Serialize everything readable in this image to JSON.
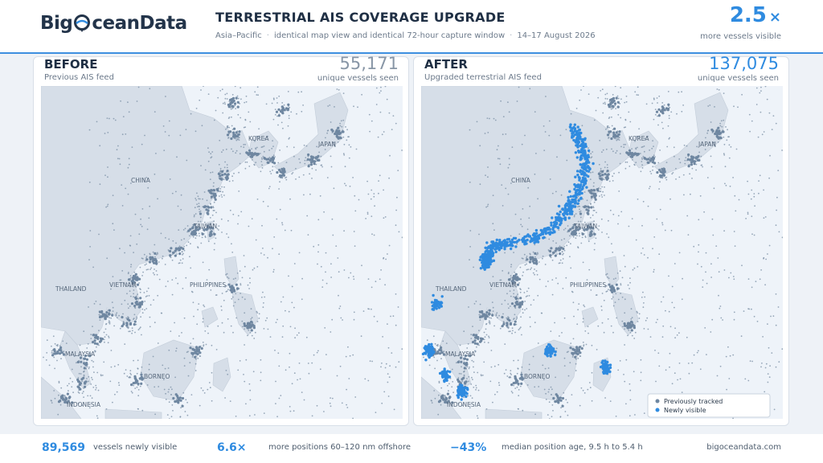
{
  "header": {
    "logo": {
      "left": "Big",
      "right": "ceanData"
    },
    "title": "TERRESTRIAL AIS COVERAGE UPGRADE",
    "subtitle": [
      "Asia–Pacific",
      "identical map view and identical 72-hour capture window",
      "14–17 August 2026"
    ],
    "headline": {
      "value": "2.5",
      "unit": "×",
      "caption": "more vessels visible"
    }
  },
  "panels": [
    {
      "label": "BEFORE",
      "sublabel": "Previous AIS feed",
      "count": "55,171",
      "count_caption": "unique vessels seen"
    },
    {
      "label": "AFTER",
      "sublabel": "Upgraded terrestrial AIS feed",
      "count": "137,075",
      "count_caption": "unique vessels seen"
    }
  ],
  "map_labels": [
    "KOREA",
    "JAPAN",
    "CHINA",
    "TAIWAN",
    "THAILAND",
    "VIETNAM",
    "PHILIPPINES",
    "MALAYSIA",
    "BORNEO",
    "INDONESIA"
  ],
  "legend": [
    "Previously tracked",
    "Newly visible"
  ],
  "footer": {
    "stats": [
      {
        "value": "89,569",
        "caption": "vessels newly visible"
      },
      {
        "value": "6.6×",
        "caption": "more positions 60–120 nm offshore"
      },
      {
        "value": "−43%",
        "caption": "median position age, 9.5 h to 5.4 h"
      }
    ],
    "site": "bigoceandata.com"
  }
}
